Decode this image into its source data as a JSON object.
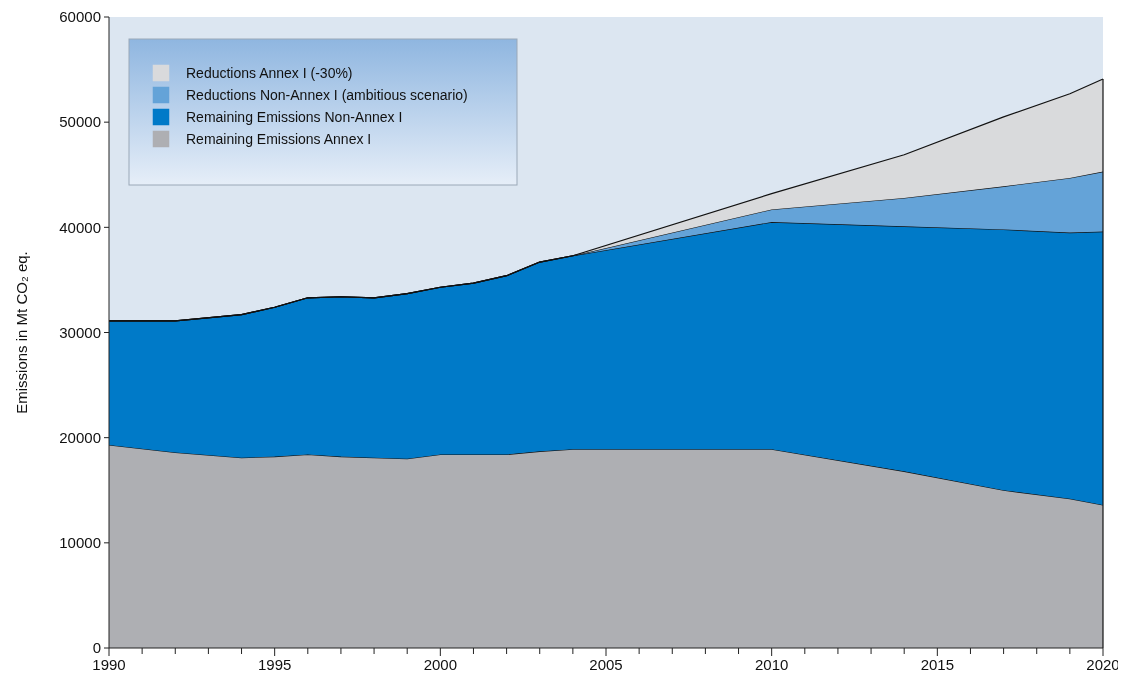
{
  "chart_data": {
    "type": "area",
    "stacked": true,
    "ylabel": "Emissions in Mt CO₂ eq.",
    "x": [
      1990,
      1992,
      1994,
      1995,
      1996,
      1997,
      1998,
      1999,
      2000,
      2001,
      2002,
      2003,
      2004,
      2010,
      2014,
      2017,
      2019,
      2020
    ],
    "series": [
      {
        "name": "Remaining Emissions Annex I",
        "color": "#aeafb3",
        "values": [
          19300,
          18600,
          18100,
          18200,
          18400,
          18200,
          18100,
          18000,
          18400,
          18400,
          18400,
          18700,
          18900,
          18900,
          16800,
          15000,
          14200,
          13600
        ]
      },
      {
        "name": "Remaining Emissions Non-Annex I",
        "color": "#007ac8",
        "values": [
          11800,
          12500,
          13600,
          14200,
          14900,
          15200,
          15200,
          15700,
          15900,
          16300,
          17000,
          18000,
          18400,
          21600,
          23300,
          24800,
          25300,
          26000
        ]
      },
      {
        "name": "Reductions Non-Annex I (ambitious scenario)",
        "color": "#64a3d8",
        "values": [
          0,
          0,
          0,
          0,
          0,
          0,
          0,
          0,
          0,
          0,
          0,
          0,
          0,
          1200,
          2700,
          4100,
          5200,
          5700
        ]
      },
      {
        "name": "Reductions Annex I (-30%)",
        "color": "#d9dadc",
        "values": [
          0,
          0,
          0,
          0,
          0,
          0,
          0,
          0,
          0,
          0,
          0,
          0,
          0,
          1500,
          4100,
          6600,
          8000,
          8800
        ]
      }
    ],
    "xlim": [
      1990,
      2020
    ],
    "xticks": [
      1990,
      {
        "value": 1991,
        "label": null
      },
      {
        "value": 1992,
        "label": null
      },
      {
        "value": 1993,
        "label": null
      },
      {
        "value": 1994,
        "label": null
      },
      1995,
      {
        "value": 1996,
        "label": null
      },
      {
        "value": 1997,
        "label": null
      },
      {
        "value": 1998,
        "label": null
      },
      {
        "value": 1999,
        "label": null
      },
      2000,
      {
        "value": 2001,
        "label": null
      },
      {
        "value": 2002,
        "label": null
      },
      {
        "value": 2003,
        "label": null
      },
      {
        "value": 2004,
        "label": null
      },
      2005,
      {
        "value": 2006,
        "label": null
      },
      {
        "value": 2007,
        "label": null
      },
      {
        "value": 2008,
        "label": null
      },
      {
        "value": 2009,
        "label": null
      },
      2010,
      {
        "value": 2011,
        "label": null
      },
      {
        "value": 2012,
        "label": null
      },
      {
        "value": 2013,
        "label": null
      },
      {
        "value": 2014,
        "label": null
      },
      2015,
      {
        "value": 2016,
        "label": null
      },
      {
        "value": 2017,
        "label": null
      },
      {
        "value": 2018,
        "label": null
      },
      {
        "value": 2019,
        "label": null
      },
      2020
    ],
    "ylim": [
      0,
      60000
    ],
    "yticks": [
      0,
      10000,
      20000,
      30000,
      40000,
      50000,
      60000
    ],
    "grid": false,
    "legend": "top left"
  }
}
